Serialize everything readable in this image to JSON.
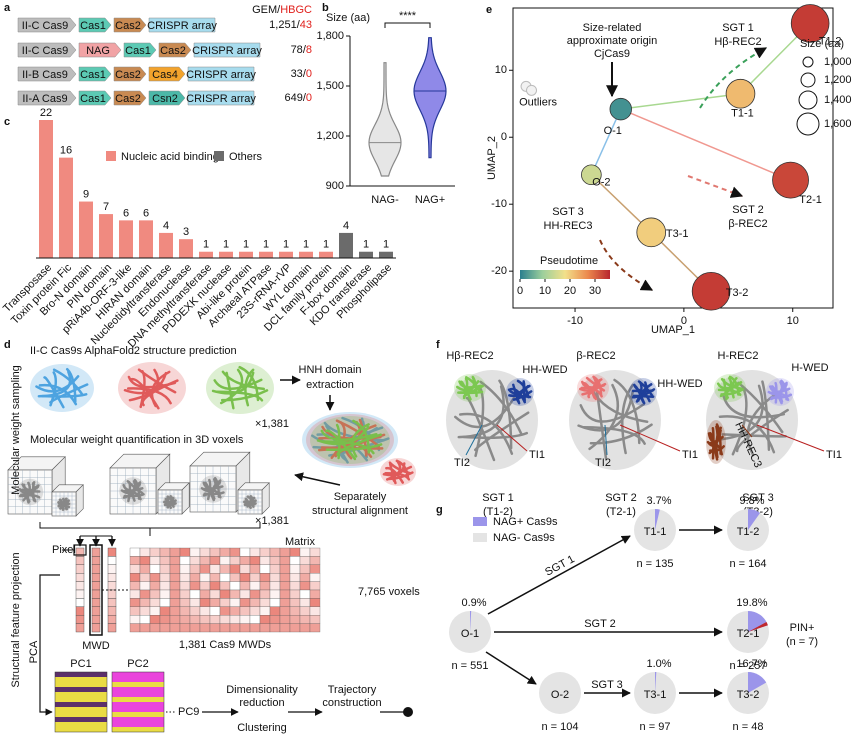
{
  "panel_labels": [
    "a",
    "b",
    "c",
    "d",
    "e",
    "f",
    "g"
  ],
  "panel_a": {
    "header": [
      "GEM/",
      "HBGC"
    ],
    "rows": [
      {
        "genes": [
          "II-C Cas9",
          "Cas1",
          "Cas2",
          "CRISPR array"
        ],
        "count": [
          "1,251",
          "/",
          "43"
        ]
      },
      {
        "genes": [
          "II-C Cas9",
          "NAG",
          "Cas1",
          "Cas2",
          "CRISPR array"
        ],
        "count": [
          "78",
          "/",
          "8"
        ]
      },
      {
        "genes": [
          "II-B Cas9",
          "Cas1",
          "Cas2",
          "Cas4",
          "CRISPR array"
        ],
        "count": [
          "33",
          "/",
          "0"
        ]
      },
      {
        "genes": [
          "II-A Cas9",
          "Cas1",
          "Cas2",
          "Csn2",
          "CRISPR array"
        ],
        "count": [
          "649",
          "/",
          "0"
        ]
      }
    ]
  },
  "panel_d": {
    "title": "II-C Cas9s AlphaFold2 structure prediction",
    "extract": [
      "HNH domain",
      "extraction"
    ],
    "multiplier": [
      "×1,381",
      "×1,381"
    ],
    "voxel_title": "Molecular weight quantification in 3D voxels",
    "align": [
      "Separately",
      "structural alignment"
    ],
    "side": [
      "Molecular weight sampling",
      "Structural feature projection"
    ],
    "pixel": "Pixel",
    "matrix": "Matrix",
    "voxels": "7,765 voxels",
    "mwd": "MWD",
    "mwds": "1,381 Cas9 MWDs",
    "pca": "PCA",
    "pcs": [
      "PC1",
      "PC2",
      "PC9"
    ],
    "steps": [
      "Dimensionality",
      "reduction",
      "Clustering",
      "Trajectory",
      "construction"
    ]
  },
  "panel_f": {
    "structures": [
      {
        "labels": [
          "Hβ-REC2",
          "HH-WED",
          "TI2",
          "TI1"
        ],
        "group": "SGT 1",
        "cluster": "(T1-2)"
      },
      {
        "labels": [
          "β-REC2",
          "HH-WED",
          "TI2",
          "TI1"
        ],
        "group": "SGT 2",
        "cluster": "(T2-1)"
      },
      {
        "labels": [
          "H-REC2",
          "H-WED",
          "HH-REC3",
          "TI1"
        ],
        "group": "SGT 3",
        "cluster": "(T3-2)"
      }
    ]
  },
  "panel_g": {
    "legend": [
      {
        "name": "NAG+ Cas9s",
        "color": "#9b95ea"
      },
      {
        "name": "NAG- Cas9s",
        "color": "#e4e4e4"
      }
    ],
    "edges": [
      "SGT 1",
      "SGT 2",
      "SGT 3"
    ]
  },
  "chart_data": [
    {
      "type": "violin",
      "y_label": "Size (aa)",
      "categories": [
        "NAG-",
        "NAG+"
      ],
      "colors": [
        "#e6e6e6",
        "#8f89e8"
      ],
      "edge_colors": [
        "#888888",
        "#26389a"
      ],
      "min": [
        960,
        1070
      ],
      "median": [
        1160,
        1470
      ],
      "max": [
        1640,
        1790
      ],
      "ylim": [
        900,
        1800
      ],
      "yticks": [
        900,
        {
          "value": 1200,
          "label": "1,200"
        },
        {
          "value": 1500,
          "label": "1,500"
        },
        {
          "value": 1800,
          "label": "1,800"
        }
      ],
      "significance": "****"
    },
    {
      "type": "bar",
      "categories": [
        "Transposase",
        "Toxin protein Fic",
        "Bro-N domain",
        "PIN domain",
        "pRiA4b-ORF-3-like",
        "HIRAN domain",
        "Nucleotidyltransferase",
        "Endonuclease",
        "DNA methyltransferase",
        "PDDEXK nuclease",
        "Abi-like protein",
        "Archaeal ATPase",
        "23S-rRNA-rVP",
        "WYL domain",
        "DCL family protein",
        "F-box domain",
        "KDO transferase",
        "Phospholipase"
      ],
      "series": [
        {
          "name": "Nucleic acid binding",
          "color": "#f08a80",
          "values": [
            22,
            16,
            9,
            7,
            6,
            6,
            4,
            3,
            1,
            1,
            1,
            1,
            1,
            1,
            1,
            null,
            null,
            null
          ]
        },
        {
          "name": "Others",
          "color": "#6b6b6b",
          "values": [
            null,
            null,
            null,
            null,
            null,
            null,
            null,
            null,
            null,
            null,
            null,
            null,
            null,
            null,
            null,
            4,
            1,
            1
          ]
        }
      ]
    },
    {
      "type": "scatter",
      "x_label": "UMAP_1",
      "y_label": "UMAP_2",
      "xlim": [
        -15.7,
        13.7
      ],
      "ylim": [
        -25.5,
        19.3
      ],
      "xticks": [
        -10,
        0,
        10
      ],
      "yticks": [
        -20,
        -10,
        0,
        10
      ],
      "labels": [
        "O-1",
        "O-2",
        "T1-1",
        "T1-2",
        "T2-1",
        "T3-1",
        "T3-2"
      ],
      "x": [
        -5.8,
        -8.5,
        5.2,
        11.6,
        9.8,
        -3,
        2.5
      ],
      "y": [
        4.2,
        -5.6,
        6.5,
        17,
        -6.4,
        -14.2,
        -23
      ],
      "size": [
        1100,
        1050,
        1300,
        1550,
        1500,
        1300,
        1550
      ],
      "pseudotime": [
        2,
        14,
        22,
        34,
        33,
        20,
        34
      ],
      "outliers": {
        "label": "Outliers",
        "x": [
          -14.5,
          -14.0
        ],
        "y": [
          7.6,
          7.0
        ],
        "color": "#bbbbbb"
      },
      "colorbar": {
        "label": "Pseudotime",
        "lim": [
          0,
          36
        ],
        "ticks": [
          0,
          10,
          20,
          30
        ],
        "colors": [
          "#2a7f8e",
          "#9ccf9c",
          "#f2e08a",
          "#ec8a4e",
          "#b8262e"
        ]
      },
      "size_legend": {
        "label": "Size (aa)",
        "ticks": [
          {
            "value": 1000,
            "label": "1,000"
          },
          {
            "value": 1200,
            "label": "1,200"
          },
          {
            "value": 1400,
            "label": "1,400"
          },
          {
            "value": 1600,
            "label": "1,600"
          }
        ]
      },
      "annotations": [
        "Size-related",
        "approximate origin",
        "CjCas9",
        "SGT 1",
        "Hβ-REC2",
        "SGT 2",
        "β-REC2",
        "SGT 3",
        "HH-REC3"
      ]
    },
    {
      "type": "pie",
      "title": "O-1",
      "values": [
        0.9
      ],
      "value_labels": [
        "0.9%"
      ],
      "n": "n = 551"
    },
    {
      "type": "pie",
      "title": "T1-1",
      "values": [
        3.7
      ],
      "value_labels": [
        "3.7%"
      ],
      "n": "n = 135"
    },
    {
      "type": "pie",
      "title": "T1-2",
      "values": [
        9.8
      ],
      "value_labels": [
        "9.8%"
      ],
      "n": "n = 164"
    },
    {
      "type": "pie",
      "title": "T2-1",
      "values": [
        19.8
      ],
      "value_labels": [
        "19.8%"
      ],
      "n": "n = 257",
      "highlight": {
        "label": [
          "PIN+",
          "(n = 7)"
        ],
        "value": 2.7,
        "color": "#c0282d"
      }
    },
    {
      "type": "pie",
      "title": "O-2",
      "values": [
        0
      ],
      "value_labels": [
        null
      ],
      "n": "n = 104"
    },
    {
      "type": "pie",
      "title": "T3-1",
      "values": [
        1.0
      ],
      "value_labels": [
        "1.0%"
      ],
      "n": "n = 97"
    },
    {
      "type": "pie",
      "title": "T3-2",
      "values": [
        16.7
      ],
      "value_labels": [
        "16.7%"
      ],
      "n": "n = 48"
    }
  ]
}
